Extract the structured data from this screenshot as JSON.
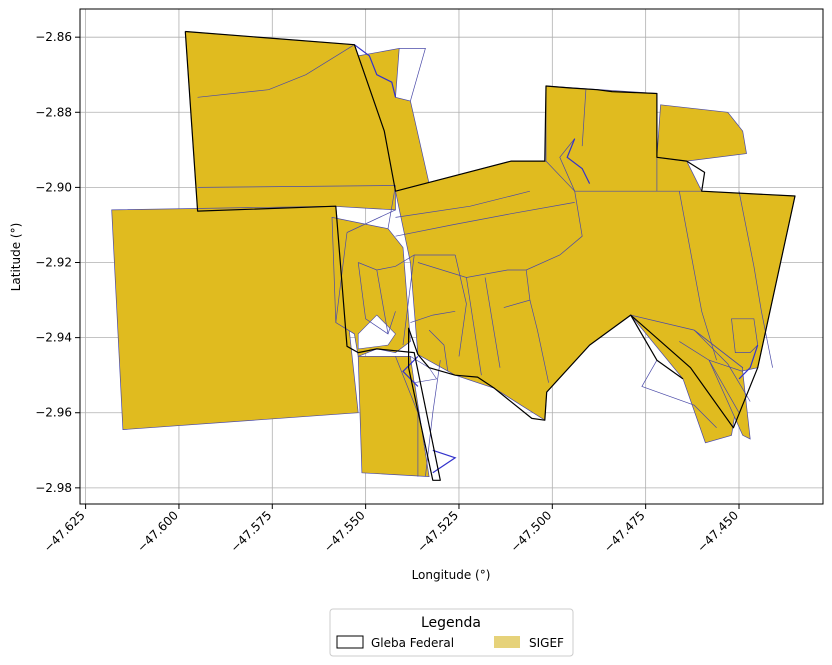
{
  "chart_data": {
    "type": "map",
    "xlabel": "Longitude (°)",
    "ylabel": "Latitude (°)",
    "xlim": [
      -47.6265,
      -47.4275
    ],
    "ylim": [
      -2.9843,
      -2.8525
    ],
    "grid": true,
    "x_ticks": [
      {
        "value": -47.625,
        "label": "−47.625"
      },
      {
        "value": -47.6,
        "label": "−47.600"
      },
      {
        "value": -47.575,
        "label": "−47.575"
      },
      {
        "value": -47.55,
        "label": "−47.550"
      },
      {
        "value": -47.525,
        "label": "−47.525"
      },
      {
        "value": -47.5,
        "label": "−47.500"
      },
      {
        "value": -47.475,
        "label": "−47.475"
      },
      {
        "value": -47.45,
        "label": "−47.450"
      }
    ],
    "y_ticks": [
      {
        "value": -2.86,
        "label": "−2.86"
      },
      {
        "value": -2.88,
        "label": "−2.88"
      },
      {
        "value": -2.9,
        "label": "−2.90"
      },
      {
        "value": -2.92,
        "label": "−2.92"
      },
      {
        "value": -2.94,
        "label": "−2.94"
      },
      {
        "value": -2.96,
        "label": "−2.96"
      },
      {
        "value": -2.98,
        "label": "−2.98"
      }
    ],
    "colors": {
      "sigef_fill": "#e0bb1f",
      "sigef_edge": "#4a4aa8",
      "gleba_edge": "#000000",
      "legend_sigef_patch": "#e6d27a",
      "grid": "#b0b0b0"
    },
    "legend": {
      "title": "Legenda",
      "placement": "bottom-center",
      "entries": [
        {
          "label": "Gleba Federal"
        },
        {
          "label": "SIGEF"
        }
      ]
    },
    "gleba_federal": [
      [
        [
          -47.5983,
          -2.8585
        ],
        [
          -47.553,
          -2.862
        ],
        [
          -47.545,
          -2.885
        ],
        [
          -47.542,
          -2.901
        ],
        [
          -47.511,
          -2.893
        ],
        [
          -47.502,
          -2.893
        ],
        [
          -47.5017,
          -2.873
        ],
        [
          -47.4955,
          -2.8735
        ],
        [
          -47.488,
          -2.874
        ],
        [
          -47.484,
          -2.8745
        ],
        [
          -47.472,
          -2.875
        ],
        [
          -47.472,
          -2.892
        ],
        [
          -47.464,
          -2.893
        ],
        [
          -47.4592,
          -2.896
        ],
        [
          -47.46,
          -2.901
        ],
        [
          -47.435,
          -2.9023
        ],
        [
          -47.445,
          -2.948
        ],
        [
          -47.4515,
          -2.964
        ],
        [
          -47.463,
          -2.948
        ],
        [
          -47.479,
          -2.934
        ],
        [
          -47.49,
          -2.942
        ],
        [
          -47.5015,
          -2.9545
        ],
        [
          -47.502,
          -2.962
        ],
        [
          -47.5055,
          -2.9615
        ],
        [
          -47.5155,
          -2.9535
        ],
        [
          -47.52,
          -2.9505
        ],
        [
          -47.526,
          -2.95
        ],
        [
          -47.533,
          -2.948
        ],
        [
          -47.536,
          -2.9445
        ],
        [
          -47.5385,
          -2.9375
        ],
        [
          -47.5385,
          -2.948
        ],
        [
          -47.532,
          -2.978
        ],
        [
          -47.53,
          -2.978
        ],
        [
          -47.537,
          -2.944
        ],
        [
          -47.547,
          -2.943
        ],
        [
          -47.552,
          -2.944
        ],
        [
          -47.555,
          -2.9423
        ],
        [
          -47.558,
          -2.905
        ],
        [
          -47.595,
          -2.9063
        ],
        [
          -47.5983,
          -2.8585
        ]
      ],
      [
        [
          -47.479,
          -2.934
        ],
        [
          -47.472,
          -2.946
        ],
        [
          -47.465,
          -2.951
        ]
      ]
    ],
    "sigef": [
      [
        [
          -47.5983,
          -2.8585
        ],
        [
          -47.553,
          -2.862
        ],
        [
          -47.552,
          -2.865
        ],
        [
          -47.541,
          -2.863
        ],
        [
          -47.542,
          -2.876
        ],
        [
          -47.538,
          -2.877
        ],
        [
          -47.533,
          -2.899
        ],
        [
          -47.542,
          -2.901
        ],
        [
          -47.542,
          -2.906
        ],
        [
          -47.559,
          -2.905
        ],
        [
          -47.595,
          -2.9063
        ]
      ],
      [
        [
          -47.618,
          -2.906
        ],
        [
          -47.558,
          -2.905
        ],
        [
          -47.552,
          -2.96
        ],
        [
          -47.615,
          -2.9645
        ]
      ],
      [
        [
          -47.559,
          -2.908
        ],
        [
          -47.544,
          -2.911
        ],
        [
          -47.54,
          -2.916
        ],
        [
          -47.538,
          -2.941
        ],
        [
          -47.542,
          -2.944
        ],
        [
          -47.547,
          -2.943
        ],
        [
          -47.552,
          -2.945
        ],
        [
          -47.553,
          -2.939
        ],
        [
          -47.558,
          -2.936
        ]
      ],
      [
        [
          -47.552,
          -2.945
        ],
        [
          -47.538,
          -2.945
        ],
        [
          -47.533,
          -2.977
        ],
        [
          -47.551,
          -2.976
        ]
      ],
      [
        [
          -47.542,
          -2.901
        ],
        [
          -47.511,
          -2.893
        ],
        [
          -47.502,
          -2.893
        ],
        [
          -47.466,
          -2.895
        ],
        [
          -47.46,
          -2.901
        ],
        [
          -47.435,
          -2.9023
        ],
        [
          -47.445,
          -2.948
        ],
        [
          -47.459,
          -2.951
        ],
        [
          -47.479,
          -2.934
        ],
        [
          -47.49,
          -2.942
        ],
        [
          -47.5015,
          -2.9545
        ],
        [
          -47.502,
          -2.962
        ],
        [
          -47.5155,
          -2.9535
        ],
        [
          -47.526,
          -2.95
        ],
        [
          -47.536,
          -2.9445
        ],
        [
          -47.538,
          -2.92
        ]
      ],
      [
        [
          -47.5017,
          -2.873
        ],
        [
          -47.472,
          -2.875
        ],
        [
          -47.472,
          -2.892
        ],
        [
          -47.464,
          -2.893
        ],
        [
          -47.46,
          -2.901
        ],
        [
          -47.494,
          -2.901
        ],
        [
          -47.5017,
          -2.893
        ]
      ],
      [
        [
          -47.471,
          -2.878
        ],
        [
          -47.453,
          -2.88
        ],
        [
          -47.449,
          -2.885
        ],
        [
          -47.448,
          -2.891
        ],
        [
          -47.464,
          -2.893
        ],
        [
          -47.472,
          -2.892
        ]
      ],
      [
        [
          -47.479,
          -2.934
        ],
        [
          -47.465,
          -2.951
        ],
        [
          -47.459,
          -2.968
        ],
        [
          -47.452,
          -2.966
        ],
        [
          -47.449,
          -2.948
        ],
        [
          -47.462,
          -2.938
        ]
      ],
      [
        [
          -47.452,
          -2.935
        ],
        [
          -47.446,
          -2.935
        ],
        [
          -47.445,
          -2.942
        ],
        [
          -47.447,
          -2.944
        ],
        [
          -47.451,
          -2.944
        ]
      ],
      [
        [
          -47.458,
          -2.946
        ],
        [
          -47.449,
          -2.966
        ],
        [
          -47.447,
          -2.967
        ],
        [
          -47.449,
          -2.949
        ]
      ]
    ],
    "sigef_internal_lines": [
      [
        [
          -47.595,
          -2.876
        ],
        [
          -47.576,
          -2.874
        ],
        [
          -47.566,
          -2.87
        ],
        [
          -47.553,
          -2.862
        ]
      ],
      [
        [
          -47.595,
          -2.9
        ],
        [
          -47.542,
          -2.8995
        ]
      ],
      [
        [
          -47.544,
          -2.911
        ],
        [
          -47.542,
          -2.8995
        ]
      ],
      [
        [
          -47.541,
          -2.863
        ],
        [
          -47.534,
          -2.863
        ],
        [
          -47.538,
          -2.877
        ]
      ],
      [
        [
          -47.542,
          -2.906
        ],
        [
          -47.555,
          -2.912
        ]
      ],
      [
        [
          -47.555,
          -2.912
        ],
        [
          -47.558,
          -2.936
        ]
      ],
      [
        [
          -47.552,
          -2.92
        ],
        [
          -47.547,
          -2.922
        ],
        [
          -47.542,
          -2.921
        ],
        [
          -47.537,
          -2.918
        ],
        [
          -47.526,
          -2.918
        ]
      ],
      [
        [
          -47.552,
          -2.92
        ],
        [
          -47.55,
          -2.935
        ],
        [
          -47.544,
          -2.939
        ],
        [
          -47.542,
          -2.933
        ]
      ],
      [
        [
          -47.547,
          -2.922
        ],
        [
          -47.544,
          -2.939
        ]
      ],
      [
        [
          -47.537,
          -2.918
        ],
        [
          -47.54,
          -2.942
        ]
      ],
      [
        [
          -47.538,
          -2.936
        ],
        [
          -47.532,
          -2.934
        ],
        [
          -47.526,
          -2.933
        ]
      ],
      [
        [
          -47.533,
          -2.938
        ],
        [
          -47.529,
          -2.942
        ],
        [
          -47.528,
          -2.949
        ]
      ],
      [
        [
          -47.526,
          -2.918
        ],
        [
          -47.523,
          -2.931
        ],
        [
          -47.525,
          -2.945
        ]
      ],
      [
        [
          -47.53,
          -2.946
        ],
        [
          -47.532,
          -2.96
        ],
        [
          -47.534,
          -2.977
        ]
      ],
      [
        [
          -47.542,
          -2.945
        ],
        [
          -47.536,
          -2.96
        ],
        [
          -47.536,
          -2.977
        ]
      ],
      [
        [
          -47.542,
          -2.913
        ],
        [
          -47.527,
          -2.91
        ],
        [
          -47.511,
          -2.907
        ],
        [
          -47.494,
          -2.904
        ]
      ],
      [
        [
          -47.542,
          -2.908
        ],
        [
          -47.522,
          -2.905
        ],
        [
          -47.506,
          -2.901
        ]
      ],
      [
        [
          -47.536,
          -2.92
        ],
        [
          -47.523,
          -2.924
        ],
        [
          -47.512,
          -2.922
        ],
        [
          -47.507,
          -2.922
        ],
        [
          -47.498,
          -2.918
        ],
        [
          -47.492,
          -2.913
        ],
        [
          -47.494,
          -2.901
        ]
      ],
      [
        [
          -47.523,
          -2.924
        ],
        [
          -47.519,
          -2.95
        ]
      ],
      [
        [
          -47.518,
          -2.924
        ],
        [
          -47.514,
          -2.948
        ]
      ],
      [
        [
          -47.507,
          -2.922
        ],
        [
          -47.506,
          -2.93
        ],
        [
          -47.513,
          -2.932
        ]
      ],
      [
        [
          -47.506,
          -2.93
        ],
        [
          -47.504,
          -2.938
        ],
        [
          -47.501,
          -2.952
        ]
      ],
      [
        [
          -47.494,
          -2.901
        ],
        [
          -47.498,
          -2.892
        ],
        [
          -47.494,
          -2.887
        ]
      ],
      [
        [
          -47.491,
          -2.874
        ],
        [
          -47.492,
          -2.889
        ]
      ],
      [
        [
          -47.472,
          -2.892
        ],
        [
          -47.472,
          -2.901
        ]
      ],
      [
        [
          -47.466,
          -2.901
        ],
        [
          -47.46,
          -2.933
        ],
        [
          -47.456,
          -2.946
        ]
      ],
      [
        [
          -47.45,
          -2.901
        ],
        [
          -47.446,
          -2.921
        ],
        [
          -47.444,
          -2.933
        ],
        [
          -47.441,
          -2.948
        ]
      ],
      [
        [
          -47.472,
          -2.946
        ],
        [
          -47.476,
          -2.953
        ],
        [
          -47.462,
          -2.958
        ],
        [
          -47.456,
          -2.964
        ]
      ],
      [
        [
          -47.466,
          -2.941
        ],
        [
          -47.458,
          -2.946
        ],
        [
          -47.45,
          -2.96
        ]
      ],
      [
        [
          -47.462,
          -2.938
        ],
        [
          -47.453,
          -2.947
        ],
        [
          -47.447,
          -2.957
        ]
      ],
      [
        [
          -47.462,
          -2.938
        ],
        [
          -47.449,
          -2.948
        ]
      ]
    ],
    "rivers": [
      [
        [
          -47.553,
          -2.862
        ],
        [
          -47.549,
          -2.865
        ],
        [
          -47.547,
          -2.87
        ],
        [
          -47.543,
          -2.872
        ],
        [
          -47.542,
          -2.876
        ]
      ],
      [
        [
          -47.494,
          -2.887
        ],
        [
          -47.496,
          -2.892
        ],
        [
          -47.492,
          -2.895
        ],
        [
          -47.49,
          -2.899
        ]
      ],
      [
        [
          -47.445,
          -2.942
        ],
        [
          -47.447,
          -2.948
        ],
        [
          -47.45,
          -2.951
        ]
      ],
      [
        [
          -47.536,
          -2.945
        ],
        [
          -47.54,
          -2.949
        ],
        [
          -47.536,
          -2.953
        ]
      ],
      [
        [
          -47.532,
          -2.97
        ],
        [
          -47.526,
          -2.972
        ],
        [
          -47.532,
          -2.976
        ]
      ]
    ],
    "gaps": [
      [
        [
          -47.547,
          -2.934
        ],
        [
          -47.542,
          -2.939
        ],
        [
          -47.544,
          -2.942
        ],
        [
          -47.552,
          -2.943
        ],
        [
          -47.552,
          -2.939
        ]
      ],
      [
        [
          -47.538,
          -2.945
        ],
        [
          -47.533,
          -2.948
        ],
        [
          -47.531,
          -2.951
        ],
        [
          -47.537,
          -2.952
        ]
      ]
    ]
  }
}
